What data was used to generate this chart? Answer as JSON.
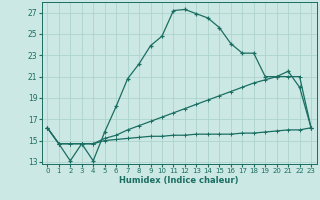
{
  "xlabel": "Humidex (Indice chaleur)",
  "bg_color": "#cce8e4",
  "line_color": "#1a6e62",
  "grid_color": "#a8d0ca",
  "xlim_min": -0.5,
  "xlim_max": 23.5,
  "ylim_min": 12.8,
  "ylim_max": 28.0,
  "xticks": [
    0,
    1,
    2,
    3,
    4,
    5,
    6,
    7,
    8,
    9,
    10,
    11,
    12,
    13,
    14,
    15,
    16,
    17,
    18,
    19,
    20,
    21,
    22,
    23
  ],
  "yticks": [
    13,
    15,
    17,
    19,
    21,
    23,
    25,
    27
  ],
  "series1_x": [
    0,
    1,
    2,
    3,
    4,
    5,
    6,
    7,
    8,
    9,
    10,
    11,
    12,
    13,
    14,
    15,
    16,
    17,
    18,
    19,
    20,
    21,
    22,
    23
  ],
  "series1_y": [
    16.2,
    14.7,
    13.1,
    14.7,
    13.1,
    15.8,
    18.2,
    20.8,
    22.2,
    23.9,
    24.8,
    27.2,
    27.3,
    26.9,
    26.5,
    25.6,
    24.1,
    23.2,
    23.2,
    21.0,
    21.0,
    21.5,
    20.0,
    16.2
  ],
  "series2_x": [
    0,
    1,
    2,
    3,
    4,
    5,
    6,
    7,
    8,
    9,
    10,
    11,
    12,
    13,
    14,
    15,
    16,
    17,
    18,
    19,
    20,
    21,
    22,
    23
  ],
  "series2_y": [
    16.2,
    14.7,
    14.7,
    14.7,
    14.7,
    15.2,
    15.5,
    16.0,
    16.4,
    16.8,
    17.2,
    17.6,
    18.0,
    18.4,
    18.8,
    19.2,
    19.6,
    20.0,
    20.4,
    20.7,
    21.0,
    21.0,
    21.0,
    16.2
  ],
  "series3_x": [
    0,
    1,
    2,
    3,
    4,
    5,
    6,
    7,
    8,
    9,
    10,
    11,
    12,
    13,
    14,
    15,
    16,
    17,
    18,
    19,
    20,
    21,
    22,
    23
  ],
  "series3_y": [
    16.2,
    14.7,
    14.7,
    14.7,
    14.7,
    15.0,
    15.1,
    15.2,
    15.3,
    15.4,
    15.4,
    15.5,
    15.5,
    15.6,
    15.6,
    15.6,
    15.6,
    15.7,
    15.7,
    15.8,
    15.9,
    16.0,
    16.0,
    16.2
  ]
}
